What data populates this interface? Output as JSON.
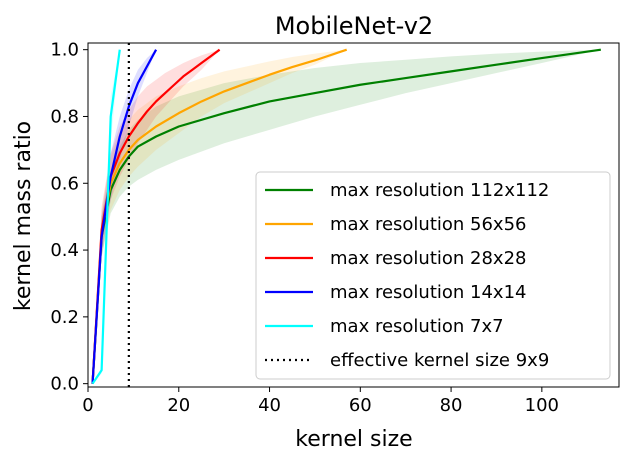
{
  "chart_data": {
    "type": "line",
    "title": "MobileNet-v2",
    "xlabel": "kernel size",
    "ylabel": "kernel mass ratio",
    "xlim": [
      0,
      117
    ],
    "ylim": [
      -0.01,
      1.02
    ],
    "xticks": [
      0,
      20,
      40,
      60,
      80,
      100
    ],
    "yticks": [
      0.0,
      0.2,
      0.4,
      0.6,
      0.8,
      1.0
    ],
    "xtick_labels": [
      "0",
      "20",
      "40",
      "60",
      "80",
      "100"
    ],
    "ytick_labels": [
      "0.0",
      "0.2",
      "0.4",
      "0.6",
      "0.8",
      "1.0"
    ],
    "grid": false,
    "legend_position": "lower-right",
    "series": [
      {
        "name": "max resolution 112x112",
        "color": "#008000",
        "x": [
          1,
          3,
          5,
          7,
          9,
          11,
          15,
          20,
          30,
          40,
          50,
          60,
          70,
          80,
          90,
          100,
          113
        ],
        "y": [
          0.0,
          0.44,
          0.58,
          0.64,
          0.68,
          0.71,
          0.74,
          0.77,
          0.81,
          0.845,
          0.87,
          0.895,
          0.915,
          0.935,
          0.955,
          0.975,
          1.0
        ],
        "lower": [
          0.0,
          0.38,
          0.51,
          0.56,
          0.59,
          0.61,
          0.64,
          0.67,
          0.72,
          0.76,
          0.8,
          0.835,
          0.87,
          0.9,
          0.93,
          0.96,
          1.0
        ],
        "upper": [
          0.0,
          0.5,
          0.64,
          0.71,
          0.76,
          0.79,
          0.83,
          0.86,
          0.9,
          0.925,
          0.945,
          0.96,
          0.97,
          0.98,
          0.988,
          0.994,
          1.0
        ]
      },
      {
        "name": "max resolution 56x56",
        "color": "#ffa500",
        "x": [
          1,
          3,
          5,
          7,
          9,
          11,
          15,
          20,
          25,
          30,
          35,
          40,
          45,
          50,
          57
        ],
        "y": [
          0.0,
          0.45,
          0.6,
          0.66,
          0.7,
          0.73,
          0.77,
          0.81,
          0.845,
          0.875,
          0.9,
          0.925,
          0.948,
          0.968,
          1.0
        ],
        "lower": [
          0.0,
          0.38,
          0.52,
          0.58,
          0.62,
          0.65,
          0.7,
          0.75,
          0.8,
          0.84,
          0.87,
          0.9,
          0.93,
          0.955,
          1.0
        ],
        "upper": [
          0.0,
          0.52,
          0.68,
          0.75,
          0.79,
          0.82,
          0.86,
          0.89,
          0.915,
          0.935,
          0.95,
          0.965,
          0.978,
          0.988,
          1.0
        ]
      },
      {
        "name": "max resolution 28x28",
        "color": "#ff0000",
        "x": [
          1,
          3,
          5,
          7,
          9,
          11,
          13,
          15,
          17,
          19,
          21,
          23,
          25,
          27,
          29
        ],
        "y": [
          0.0,
          0.46,
          0.62,
          0.69,
          0.74,
          0.78,
          0.815,
          0.845,
          0.87,
          0.895,
          0.92,
          0.94,
          0.96,
          0.98,
          1.0
        ],
        "lower": [
          0.0,
          0.4,
          0.55,
          0.62,
          0.67,
          0.72,
          0.76,
          0.8,
          0.83,
          0.86,
          0.89,
          0.915,
          0.94,
          0.97,
          1.0
        ],
        "upper": [
          0.0,
          0.53,
          0.69,
          0.77,
          0.82,
          0.86,
          0.89,
          0.91,
          0.93,
          0.945,
          0.96,
          0.972,
          0.983,
          0.992,
          1.0
        ]
      },
      {
        "name": "max resolution 14x14",
        "color": "#0000ff",
        "x": [
          1,
          3,
          5,
          7,
          9,
          11,
          13,
          15
        ],
        "y": [
          0.0,
          0.44,
          0.62,
          0.74,
          0.83,
          0.9,
          0.95,
          1.0
        ],
        "lower": [
          0.0,
          0.38,
          0.55,
          0.67,
          0.77,
          0.86,
          0.93,
          1.0
        ],
        "upper": [
          0.0,
          0.5,
          0.69,
          0.8,
          0.88,
          0.94,
          0.975,
          1.0
        ]
      },
      {
        "name": "max resolution 7x7",
        "color": "#00ffff",
        "x": [
          1,
          3,
          5,
          7
        ],
        "y": [
          0.0,
          0.04,
          0.8,
          1.0
        ],
        "lower": [
          0.0,
          0.03,
          0.72,
          1.0
        ],
        "upper": [
          0.0,
          0.05,
          0.86,
          1.0
        ]
      }
    ],
    "vline": {
      "name": "effective kernel size 9x9",
      "x": 9,
      "color": "#000000",
      "style": "dotted"
    }
  }
}
